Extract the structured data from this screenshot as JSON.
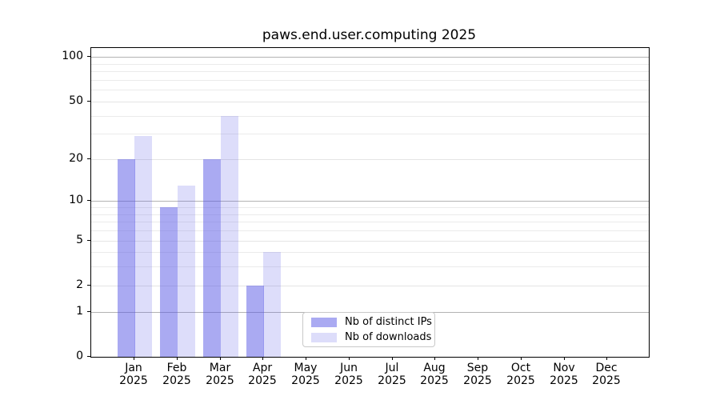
{
  "title": "paws.end.user.computing 2025",
  "chart_data": {
    "type": "bar",
    "title": "paws.end.user.computing 2025",
    "categories": [
      "Jan 2025",
      "Feb 2025",
      "Mar 2025",
      "Apr 2025",
      "May 2025",
      "Jun 2025",
      "Jul 2025",
      "Aug 2025",
      "Sep 2025",
      "Oct 2025",
      "Nov 2025",
      "Dec 2025"
    ],
    "series": [
      {
        "name": "Nb of distinct IPs",
        "values": [
          20,
          9,
          20,
          2,
          0,
          0,
          0,
          0,
          0,
          0,
          0,
          0
        ],
        "color": "rgba(85,85,230,0.5)"
      },
      {
        "name": "Nb of downloads",
        "values": [
          29,
          13,
          40,
          4,
          0,
          0,
          0,
          0,
          0,
          0,
          0,
          0
        ],
        "color": "rgba(85,85,230,0.2)"
      }
    ],
    "xlabel": "",
    "ylabel": "",
    "yscale": "log10(1+y)",
    "ylim": [
      0,
      115
    ],
    "yticks_labeled": [
      0,
      1,
      2,
      5,
      10,
      20,
      50,
      100
    ],
    "yticks_major_grid": [
      1,
      10,
      100
    ],
    "yticks_minor_grid": [
      3,
      4,
      6,
      7,
      8,
      9,
      30,
      40,
      60,
      70,
      80,
      90
    ],
    "grid": true,
    "legend_position": "lower center",
    "colors": {
      "bar_distinct_ips": "rgba(85,85,230,0.5)",
      "bar_downloads": "rgba(85,85,230,0.2)",
      "grid_minor": "#ebebeb",
      "grid_major": "#b3b3b3",
      "axis": "#000000",
      "text": "#000000",
      "legend_border": "#c9c9c9"
    }
  },
  "legend": {
    "items": [
      {
        "label": "Nb of distinct IPs"
      },
      {
        "label": "Nb of downloads"
      }
    ]
  }
}
